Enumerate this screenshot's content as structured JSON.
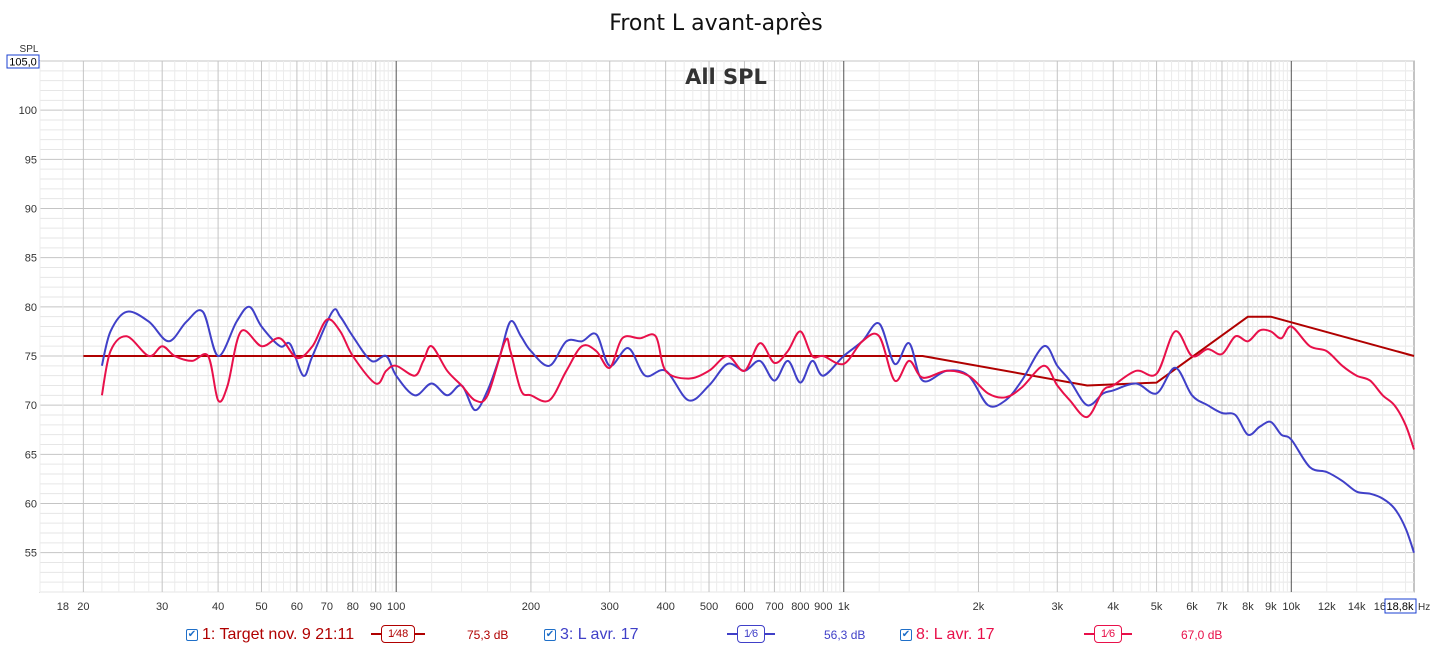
{
  "title": "Front L avant-après",
  "chart_data": {
    "type": "line",
    "title": "Front L avant-après",
    "subtitle": "All SPL",
    "ylabel": "SPL",
    "xunit": "Hz",
    "ylim": [
      51,
      105
    ],
    "xlim": [
      16,
      18800
    ],
    "xscale": "log",
    "grid": true,
    "y_top_box": "105,0",
    "x_right_box": "18,8k",
    "y_ticks": [
      55,
      60,
      65,
      70,
      75,
      80,
      85,
      90,
      95,
      100
    ],
    "x_ticks": [
      {
        "v": 18,
        "l": "18"
      },
      {
        "v": 20,
        "l": "20"
      },
      {
        "v": 30,
        "l": "30"
      },
      {
        "v": 40,
        "l": "40"
      },
      {
        "v": 50,
        "l": "50"
      },
      {
        "v": 60,
        "l": "60"
      },
      {
        "v": 70,
        "l": "70"
      },
      {
        "v": 80,
        "l": "80"
      },
      {
        "v": 90,
        "l": "90"
      },
      {
        "v": 100,
        "l": "100"
      },
      {
        "v": 200,
        "l": "200"
      },
      {
        "v": 300,
        "l": "300"
      },
      {
        "v": 400,
        "l": "400"
      },
      {
        "v": 500,
        "l": "500"
      },
      {
        "v": 600,
        "l": "600"
      },
      {
        "v": 700,
        "l": "700"
      },
      {
        "v": 800,
        "l": "800"
      },
      {
        "v": 900,
        "l": "900"
      },
      {
        "v": 1000,
        "l": "1k"
      },
      {
        "v": 2000,
        "l": "2k"
      },
      {
        "v": 3000,
        "l": "3k"
      },
      {
        "v": 4000,
        "l": "4k"
      },
      {
        "v": 5000,
        "l": "5k"
      },
      {
        "v": 6000,
        "l": "6k"
      },
      {
        "v": 7000,
        "l": "7k"
      },
      {
        "v": 8000,
        "l": "8k"
      },
      {
        "v": 9000,
        "l": "9k"
      },
      {
        "v": 10000,
        "l": "10k"
      },
      {
        "v": 12000,
        "l": "12k"
      },
      {
        "v": 14000,
        "l": "14k"
      },
      {
        "v": 16000,
        "l": "16k"
      }
    ],
    "series": [
      {
        "name": "1: Target nov. 9 21:11",
        "color": "#b00000",
        "x": [
          20,
          1000,
          1500,
          3500,
          5000,
          8000,
          9000,
          18800
        ],
        "y": [
          75,
          75,
          75,
          72,
          72.3,
          79,
          79,
          75
        ]
      },
      {
        "name": "3: L avr. 17",
        "color": "#4040c8",
        "x": [
          22,
          23,
          25,
          28,
          31,
          34,
          37,
          40,
          44,
          47,
          50,
          55,
          58,
          62,
          65,
          72,
          75,
          80,
          88,
          95,
          100,
          110,
          120,
          130,
          140,
          150,
          160,
          170,
          180,
          190,
          200,
          220,
          240,
          260,
          280,
          300,
          330,
          360,
          400,
          450,
          500,
          550,
          600,
          650,
          700,
          750,
          800,
          850,
          900,
          1000,
          1100,
          1200,
          1300,
          1400,
          1500,
          1700,
          1900,
          2100,
          2300,
          2500,
          2800,
          3000,
          3200,
          3500,
          3800,
          4000,
          4500,
          5000,
          5500,
          6000,
          6500,
          7000,
          7500,
          8000,
          8500,
          9000,
          9500,
          10000,
          11000,
          12000,
          13000,
          14000,
          15000,
          16000,
          17000,
          18000,
          18800
        ],
        "y": [
          74,
          77.5,
          79.5,
          78.5,
          76.5,
          78.5,
          79.5,
          75,
          78.5,
          80,
          78,
          76,
          76.2,
          73,
          75,
          79.5,
          79,
          77,
          74.5,
          75,
          73,
          71,
          72.2,
          71,
          72,
          69.5,
          71.5,
          74.8,
          78.5,
          77,
          75.5,
          74,
          76.5,
          76.5,
          77.2,
          74,
          75.8,
          73,
          73.5,
          70.5,
          72,
          74.2,
          73.5,
          74.5,
          72.5,
          74.5,
          72.3,
          74.5,
          73,
          75,
          76.5,
          78.3,
          74.2,
          76.3,
          72.5,
          73.5,
          73,
          70,
          70.5,
          72.5,
          76,
          74,
          72.5,
          70,
          71.2,
          71.5,
          72.2,
          71.2,
          73.8,
          71,
          70,
          69.2,
          69,
          67,
          67.8,
          68.3,
          67,
          66.5,
          63.7,
          63.2,
          62.3,
          61.2,
          61,
          60.5,
          59.5,
          57.5,
          55
        ]
      },
      {
        "name": "8: L avr. 17",
        "color": "#e8104a",
        "x": [
          22,
          23,
          25,
          28,
          30,
          32,
          35,
          38,
          40,
          42,
          45,
          50,
          55,
          60,
          65,
          70,
          75,
          80,
          90,
          95,
          100,
          110,
          115,
          120,
          130,
          140,
          150,
          160,
          175,
          180,
          190,
          200,
          220,
          240,
          260,
          280,
          300,
          320,
          350,
          380,
          400,
          450,
          500,
          550,
          600,
          650,
          700,
          750,
          800,
          850,
          900,
          1000,
          1100,
          1200,
          1300,
          1400,
          1500,
          1700,
          1900,
          2100,
          2300,
          2500,
          2800,
          3000,
          3200,
          3500,
          3800,
          4000,
          4500,
          5000,
          5500,
          6000,
          6500,
          7000,
          7500,
          8000,
          8500,
          9000,
          9500,
          10000,
          11000,
          12000,
          13000,
          14000,
          15000,
          16000,
          17000,
          18000,
          18800
        ],
        "y": [
          71,
          75.5,
          77,
          75,
          76,
          75,
          74.5,
          75,
          70.5,
          72,
          77.5,
          76,
          76.8,
          74.8,
          76,
          78.7,
          77.5,
          75,
          72.2,
          73.5,
          74,
          73,
          74.5,
          76,
          73.5,
          72,
          70.5,
          71,
          76.5,
          75.5,
          71.5,
          71,
          70.5,
          73.5,
          76,
          75.5,
          73.8,
          76.8,
          76.8,
          77,
          73.5,
          72.7,
          73.5,
          75,
          73.5,
          76.3,
          74.3,
          75.5,
          77.5,
          75,
          75,
          74.2,
          76.5,
          77,
          72.5,
          74.5,
          72.8,
          73.5,
          73,
          71.2,
          70.8,
          71.8,
          74,
          72,
          70.5,
          68.8,
          71.5,
          72,
          73.5,
          73.2,
          77.5,
          75,
          75.7,
          75.2,
          77,
          76.5,
          77.6,
          77.5,
          76.8,
          78,
          76,
          75.5,
          74,
          73,
          72.5,
          71,
          70,
          68,
          65.5
        ]
      }
    ]
  },
  "legend": {
    "items": [
      {
        "label": "1: Target nov. 9 21:11",
        "smoothing": "1⁄48",
        "level": "75,3 dB",
        "color": "#b00000"
      },
      {
        "label": "3: L avr. 17",
        "smoothing": "1⁄6",
        "level": "56,3 dB",
        "color": "#4040c8"
      },
      {
        "label": "8: L avr. 17",
        "smoothing": "1⁄6",
        "level": "67,0 dB",
        "color": "#e8104a"
      }
    ]
  }
}
